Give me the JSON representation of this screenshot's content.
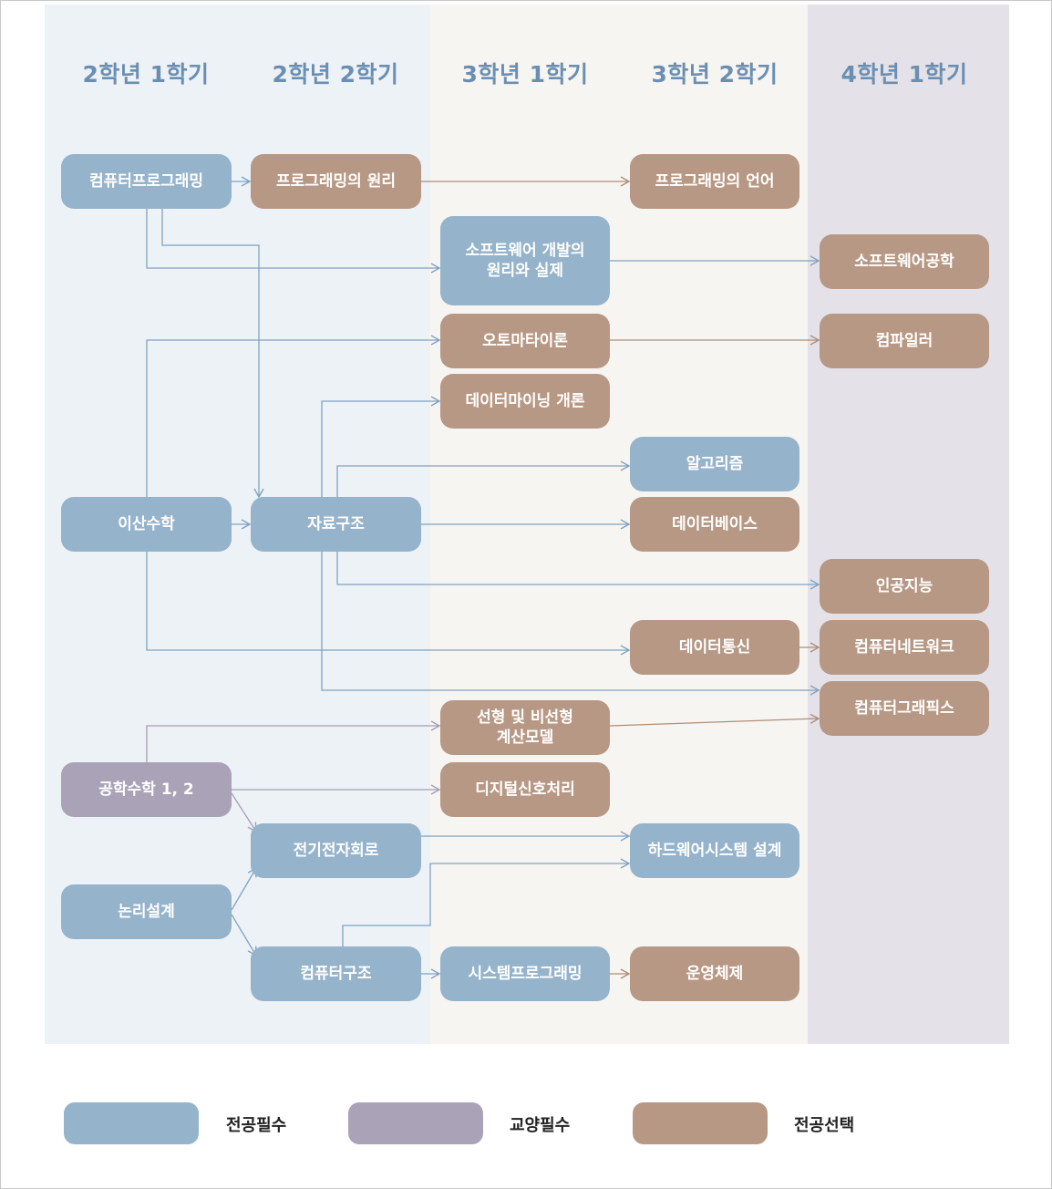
{
  "semesters": [
    "2학년 1학기",
    "2학년 2학기",
    "3학년 1학기",
    "3학년 2학기",
    "4학년 1학기"
  ],
  "courses": {
    "comp_prog": "컴퓨터프로그래밍",
    "prog_principle": "프로그래밍의 원리",
    "prog_language": "프로그래밍의 언어",
    "sw_dev": "소프트웨어 개발의\n원리와 실제",
    "sw_eng": "소프트웨어공학",
    "automata": "오토마타이론",
    "compiler": "컴파일러",
    "data_mining": "데이터마이닝 개론",
    "algorithm": "알고리즘",
    "discrete_math": "이산수학",
    "data_struct": "자료구조",
    "database": "데이터베이스",
    "ai": "인공지능",
    "data_comm": "데이터통신",
    "network": "컴퓨터네트워크",
    "graphics": "컴퓨터그래픽스",
    "linear_models": "선형 및 비선형\n계산모델",
    "eng_math": "공학수학 1, 2",
    "dsp": "디지털신호처리",
    "circuits": "전기전자회로",
    "hw_design": "하드웨어시스템 설계",
    "logic_design": "논리설계",
    "comp_arch": "컴퓨터구조",
    "sys_prog": "시스템프로그래밍",
    "os": "운영체제"
  },
  "legend": {
    "major_required": "전공필수",
    "general_required": "교양필수",
    "major_elective": "전공선택"
  },
  "colors": {
    "major_required": "#95b3cb",
    "general_required": "#aaa3b8",
    "major_elective": "#b79884",
    "arrow_blue": "#7fa3c3",
    "arrow_brown": "#b08d78",
    "arrow_purple": "#a79db6"
  }
}
